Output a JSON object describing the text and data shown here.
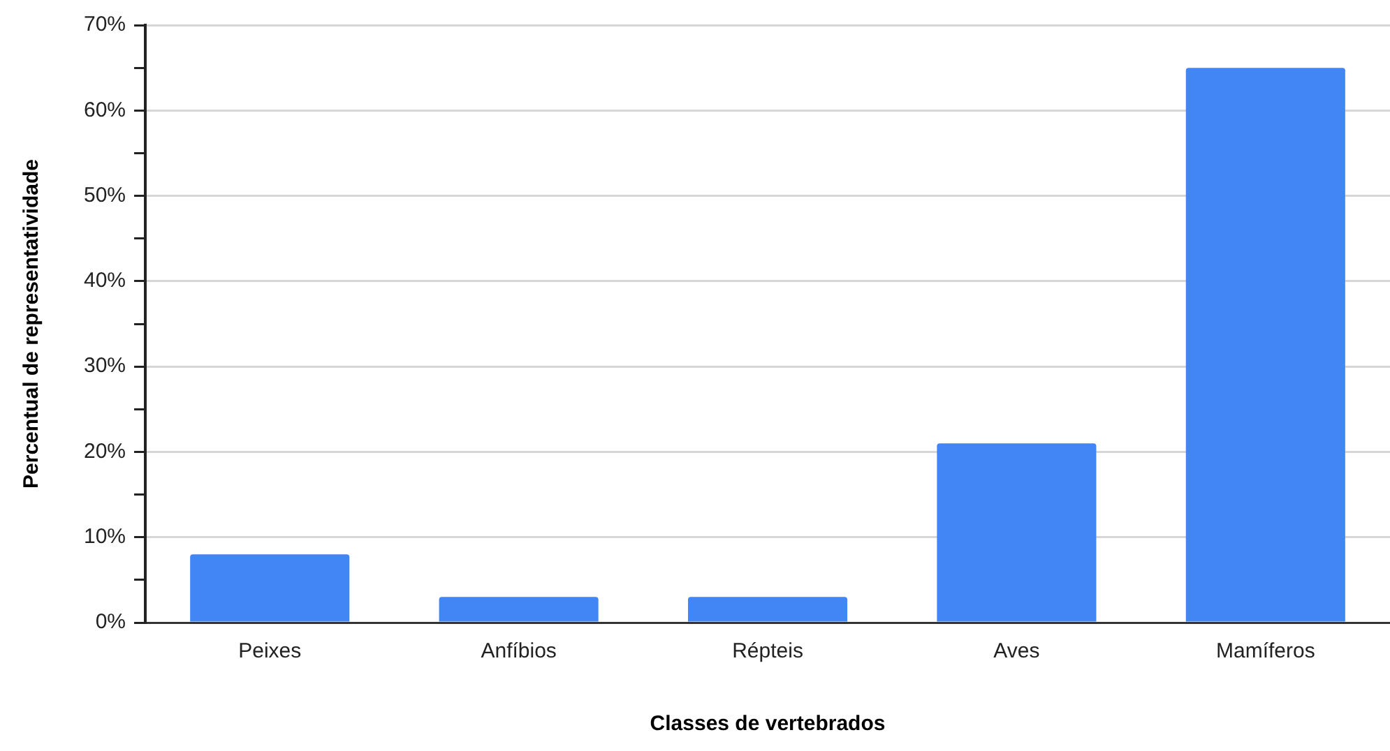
{
  "chart_data": {
    "type": "bar",
    "xlabel": "Classes de vertebrados",
    "ylabel": "Percentual de representatividade",
    "categories": [
      "Peixes",
      "Anfíbios",
      "Répteis",
      "Aves",
      "Mamíferos"
    ],
    "values": [
      8,
      3,
      3,
      21,
      65
    ],
    "color": "#4285f4",
    "ylim": [
      0,
      70
    ],
    "yticks": [
      {
        "value": 0,
        "label": "0%"
      },
      {
        "value": 5,
        "label": null
      },
      {
        "value": 10,
        "label": "10%"
      },
      {
        "value": 15,
        "label": null
      },
      {
        "value": 20,
        "label": "20%"
      },
      {
        "value": 25,
        "label": null
      },
      {
        "value": 30,
        "label": "30%"
      },
      {
        "value": 35,
        "label": null
      },
      {
        "value": 40,
        "label": "40%"
      },
      {
        "value": 45,
        "label": null
      },
      {
        "value": 50,
        "label": "50%"
      },
      {
        "value": 55,
        "label": null
      },
      {
        "value": 60,
        "label": "60%"
      },
      {
        "value": 65,
        "label": null
      },
      {
        "value": 70,
        "label": "70%"
      }
    ],
    "grid": "y",
    "legend": false
  }
}
